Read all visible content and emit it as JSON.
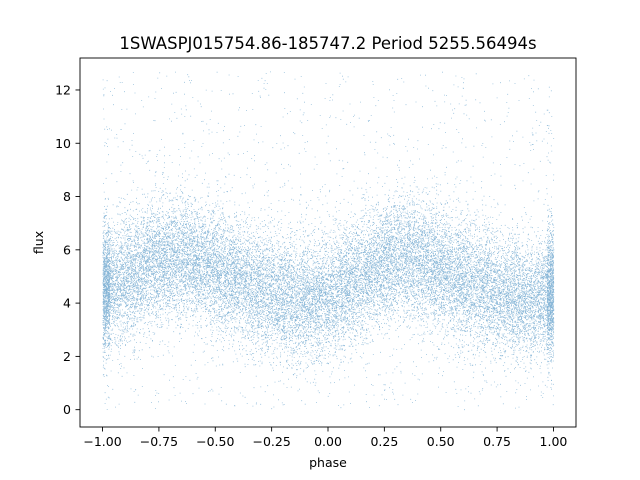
{
  "chart_data": {
    "type": "scatter",
    "title": "1SWASPJ015754.86-185747.2 Period 5255.56494s",
    "xlabel": "phase",
    "ylabel": "flux",
    "xlim": [
      -1.1,
      1.1
    ],
    "ylim": [
      -0.65,
      13.2
    ],
    "xticks": [
      -1.0,
      -0.75,
      -0.5,
      -0.25,
      0.0,
      0.25,
      0.5,
      0.75,
      1.0
    ],
    "xtick_labels": [
      "−1.00",
      "−0.75",
      "−0.50",
      "−0.25",
      "0.00",
      "0.25",
      "0.50",
      "0.75",
      "1.00"
    ],
    "yticks": [
      0,
      2,
      4,
      6,
      8,
      10,
      12
    ],
    "ytick_labels": [
      "0",
      "2",
      "4",
      "6",
      "8",
      "10",
      "12"
    ],
    "grid": false,
    "marker_color": "#1f77b4",
    "x_range": [
      -1.0,
      1.0
    ],
    "y_range": [
      0.0,
      12.7
    ],
    "trend": {
      "description": "phase-folded light curve, roughly sinusoidal with period 1.0 in phase",
      "x": [
        -1.0,
        -0.9,
        -0.8,
        -0.7,
        -0.6,
        -0.5,
        -0.4,
        -0.3,
        -0.2,
        -0.1,
        0.0,
        0.1,
        0.2,
        0.3,
        0.4,
        0.5,
        0.6,
        0.7,
        0.8,
        0.9,
        1.0
      ],
      "y": [
        4.5,
        4.9,
        5.4,
        5.7,
        5.6,
        5.3,
        4.9,
        4.5,
        4.2,
        4.1,
        4.3,
        4.8,
        5.3,
        5.7,
        5.6,
        5.3,
        4.9,
        4.5,
        4.2,
        4.1,
        4.4
      ]
    }
  }
}
